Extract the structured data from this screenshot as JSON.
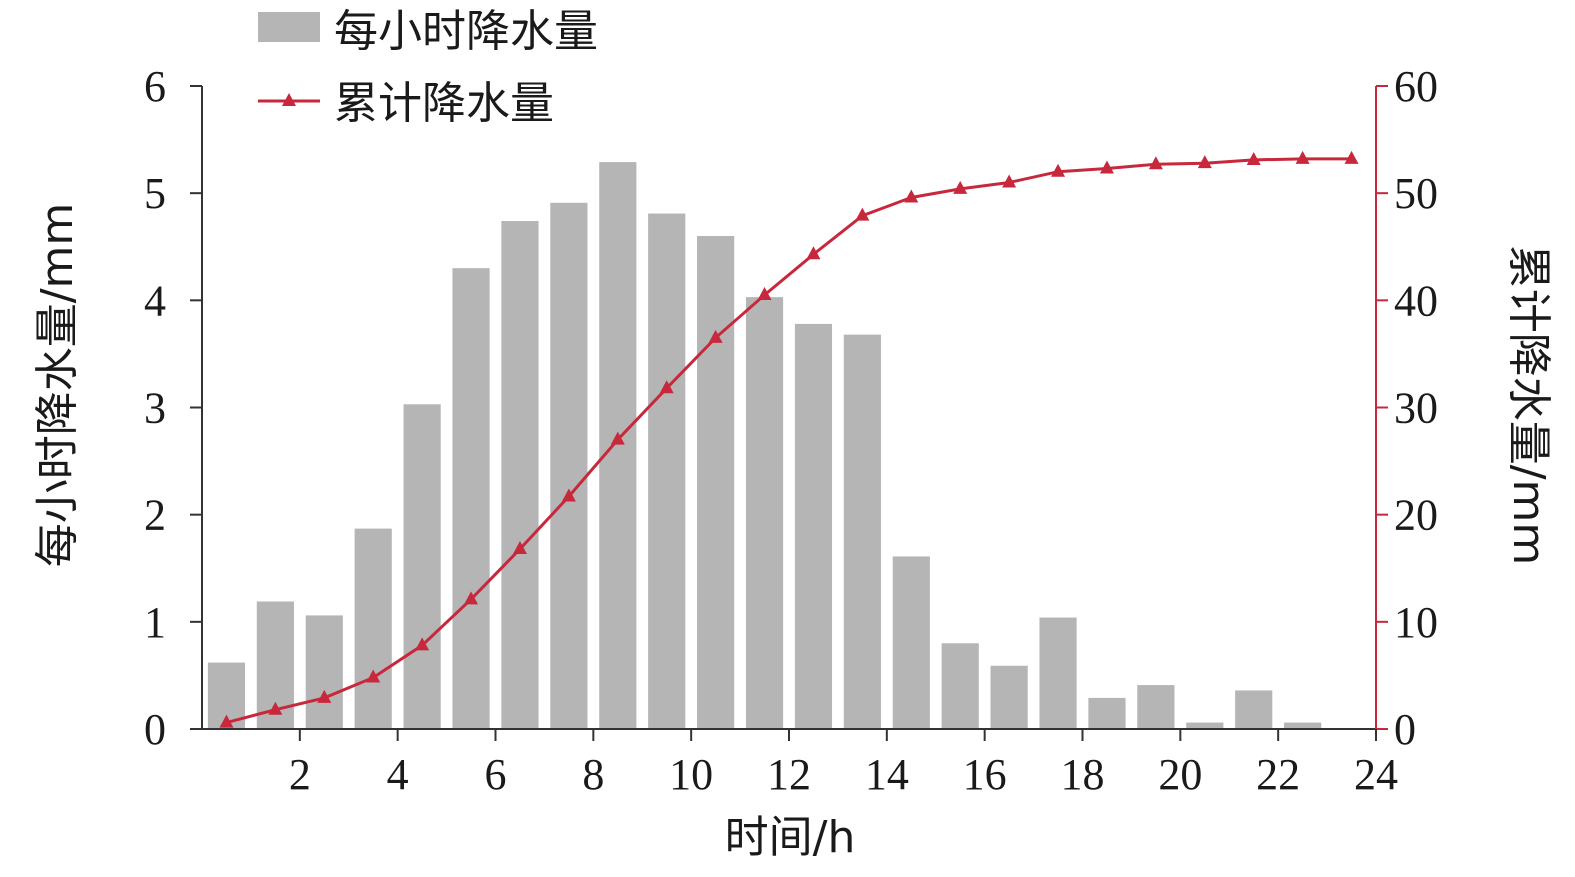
{
  "chart_data": {
    "type": "bar+line",
    "title": "",
    "xlabel": "时间/h",
    "ylabel_left": "每小时降水量/mm",
    "ylabel_right": "累计降水量/mm",
    "x": [
      1,
      2,
      3,
      4,
      5,
      6,
      7,
      8,
      9,
      10,
      11,
      12,
      13,
      14,
      15,
      16,
      17,
      18,
      19,
      20,
      21,
      22,
      23,
      24
    ],
    "x_ticks": [
      "2",
      "4",
      "6",
      "8",
      "10",
      "12",
      "14",
      "16",
      "18",
      "20",
      "22",
      "24"
    ],
    "ylim_left": [
      0,
      6
    ],
    "ylim_right": [
      0,
      60
    ],
    "y_ticks_left": [
      "0",
      "1",
      "2",
      "3",
      "4",
      "5",
      "6"
    ],
    "y_ticks_right": [
      "0",
      "10",
      "20",
      "30",
      "40",
      "50",
      "60"
    ],
    "grid": false,
    "legend_position": "top-left",
    "series": [
      {
        "name": "每小时降水量",
        "type": "bar",
        "axis": "left",
        "color": "#b5b5b5",
        "values": [
          0.62,
          1.19,
          1.06,
          1.87,
          3.03,
          4.3,
          4.74,
          4.91,
          5.29,
          4.81,
          4.6,
          4.03,
          3.78,
          3.68,
          1.61,
          0.8,
          0.59,
          1.04,
          0.29,
          0.41,
          0.06,
          0.36,
          0.06,
          0.0
        ]
      },
      {
        "name": "累计降水量",
        "type": "line",
        "axis": "right",
        "color": "#c8283c",
        "marker": "triangle",
        "values": [
          0.6,
          1.8,
          2.9,
          4.8,
          7.8,
          12.1,
          16.8,
          21.7,
          27.0,
          31.8,
          36.5,
          40.5,
          44.3,
          47.9,
          49.6,
          50.4,
          51.0,
          52.0,
          52.3,
          52.7,
          52.8,
          53.1,
          53.2,
          53.2
        ]
      }
    ]
  }
}
